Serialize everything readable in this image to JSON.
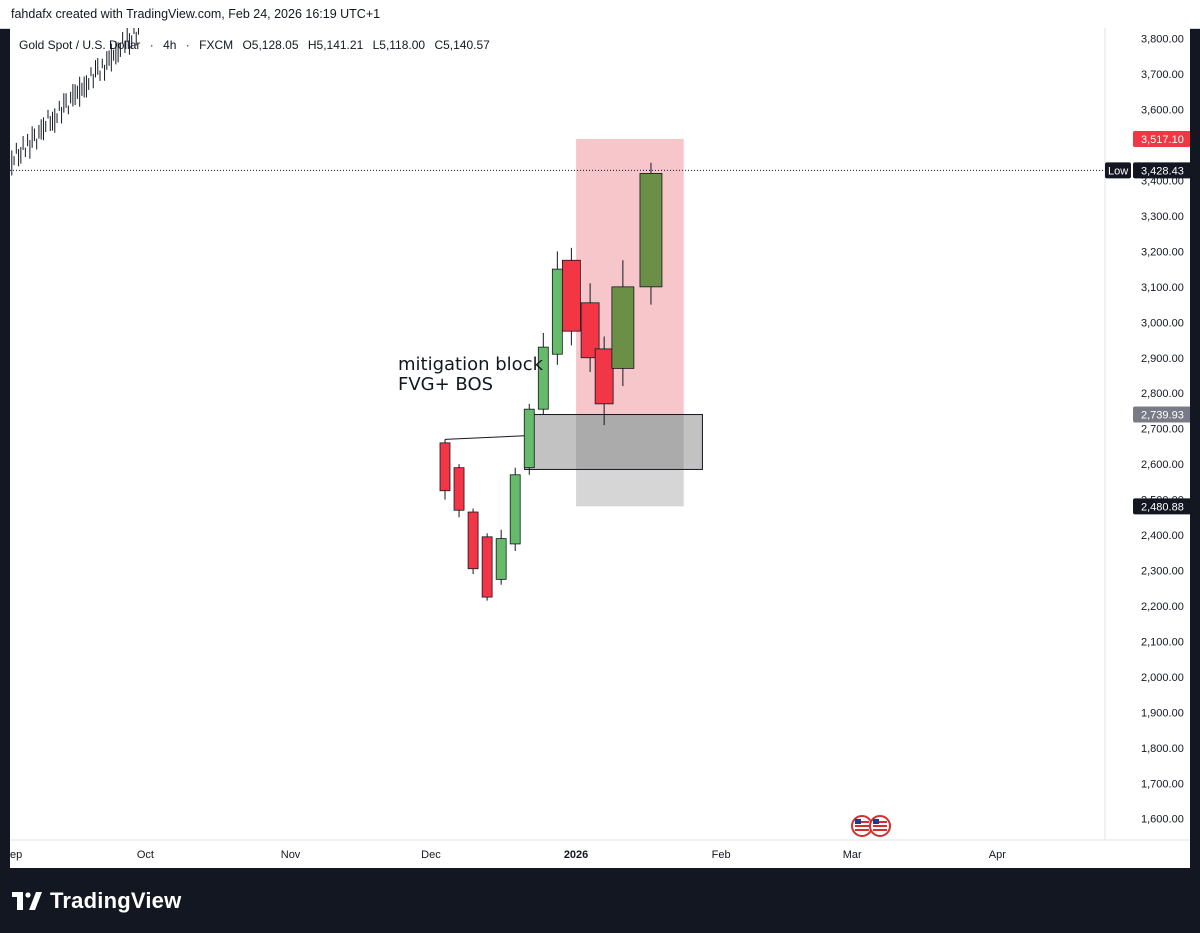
{
  "credit": "fahdafx created with TradingView.com, Feb 24, 2026 16:19 UTC+1",
  "legend": {
    "symbol": "Gold Spot / U.S. Dollar",
    "interval": "4h",
    "source": "FXCM",
    "open": "O5,128.05",
    "high": "H5,141.21",
    "low": "L5,118.00",
    "close": "C5,140.57"
  },
  "annotation": {
    "line1": "mitigation block",
    "line2": "FVG+ BOS"
  },
  "brand": {
    "name": "TradingView",
    "logo_icon": "tradingview-logo-icon"
  },
  "events_icon": "us-flag-icon",
  "colors": {
    "bull": "#66bb6a",
    "bull_dark": "#6b8f47",
    "bear": "#f23645",
    "zone_red": "#f7c6cb",
    "zone_gray": "#bdbdbd",
    "price_badge_red": "#f23645",
    "price_badge_dark": "#131722",
    "price_badge_gray": "#787b86"
  },
  "chart_data": {
    "type": "candlestick",
    "ylim": [
      1540,
      3830
    ],
    "y_ticks": [
      {
        "value": 1600,
        "label": "1,600.00"
      },
      {
        "value": 1700,
        "label": "1,700.00"
      },
      {
        "value": 1800,
        "label": "1,800.00"
      },
      {
        "value": 1900,
        "label": "1,900.00"
      },
      {
        "value": 2000,
        "label": "2,000.00"
      },
      {
        "value": 2100,
        "label": "2,100.00"
      },
      {
        "value": 2200,
        "label": "2,200.00"
      },
      {
        "value": 2300,
        "label": "2,300.00"
      },
      {
        "value": 2400,
        "label": "2,400.00"
      },
      {
        "value": 2500,
        "label": "2,500.00"
      },
      {
        "value": 2600,
        "label": "2,600.00"
      },
      {
        "value": 2700,
        "label": "2,700.00"
      },
      {
        "value": 2800,
        "label": "2,800.00"
      },
      {
        "value": 2900,
        "label": "2,900.00"
      },
      {
        "value": 3000,
        "label": "3,000.00"
      },
      {
        "value": 3100,
        "label": "3,100.00"
      },
      {
        "value": 3200,
        "label": "3,200.00"
      },
      {
        "value": 3300,
        "label": "3,300.00"
      },
      {
        "value": 3400,
        "label": "3,400.00"
      },
      {
        "value": 3600,
        "label": "3,600.00"
      },
      {
        "value": 3700,
        "label": "3,700.00"
      },
      {
        "value": 3800,
        "label": "3,800.00"
      }
    ],
    "x_ticks": [
      {
        "date": "2025-09-01",
        "label": "ep"
      },
      {
        "date": "2025-10-01",
        "label": "Oct"
      },
      {
        "date": "2025-11-01",
        "label": "Nov"
      },
      {
        "date": "2025-12-01",
        "label": "Dec"
      },
      {
        "date": "2026-01-01",
        "label": "2026",
        "bold": true
      },
      {
        "date": "2026-02-01",
        "label": "Feb"
      },
      {
        "date": "2026-03-01",
        "label": "Mar"
      },
      {
        "date": "2026-04-01",
        "label": "Apr"
      }
    ],
    "xlim": [
      "2025-09-01",
      "2026-04-24"
    ],
    "candles": [
      {
        "date": "2025-12-04",
        "open": 2660,
        "high": 2670,
        "low": 2500,
        "close": 2525
      },
      {
        "date": "2025-12-07",
        "open": 2590,
        "high": 2600,
        "low": 2450,
        "close": 2470
      },
      {
        "date": "2025-12-10",
        "open": 2465,
        "high": 2475,
        "low": 2290,
        "close": 2305
      },
      {
        "date": "2025-12-13",
        "open": 2395,
        "high": 2405,
        "low": 2215,
        "close": 2225
      },
      {
        "date": "2025-12-16",
        "open": 2275,
        "high": 2415,
        "low": 2260,
        "close": 2390
      },
      {
        "date": "2025-12-19",
        "open": 2375,
        "high": 2590,
        "low": 2355,
        "close": 2570
      },
      {
        "date": "2025-12-22",
        "open": 2590,
        "high": 2770,
        "low": 2570,
        "close": 2755
      },
      {
        "date": "2025-12-25",
        "open": 2755,
        "high": 2970,
        "low": 2740,
        "close": 2930
      },
      {
        "date": "2025-12-28",
        "open": 2910,
        "high": 3200,
        "low": 2880,
        "close": 3150
      },
      {
        "date": "2025-12-31",
        "open": 3175,
        "high": 3210,
        "low": 2935,
        "close": 2975
      },
      {
        "date": "2026-01-04",
        "open": 3055,
        "high": 3110,
        "low": 2860,
        "close": 2900
      },
      {
        "date": "2026-01-07",
        "open": 2925,
        "high": 2960,
        "low": 2710,
        "close": 2770
      },
      {
        "date": "2026-01-11",
        "open": 2870,
        "high": 3175,
        "low": 2820,
        "close": 3100
      },
      {
        "date": "2026-01-17",
        "open": 3100,
        "high": 3450,
        "low": 3050,
        "close": 3420
      }
    ],
    "small_history": {
      "from": "2025-09-01",
      "to": "2025-09-30",
      "start": 3430,
      "end": 3830
    },
    "levels": [
      {
        "value": 3517.1,
        "label": "3,517.10",
        "style": "red"
      },
      {
        "value": 3428.43,
        "label": "3,428.43",
        "tag": "Low",
        "style": "dark",
        "dotted_line": true
      },
      {
        "value": 2739.93,
        "label": "2,739.93",
        "style": "gray"
      },
      {
        "value": 2480.88,
        "label": "2,480.88",
        "style": "dark"
      }
    ],
    "zones": [
      {
        "name": "target-zone",
        "from": "2026-01-01",
        "to": "2026-01-24",
        "top": 3517.1,
        "bottom": 2739.93,
        "color": "red"
      },
      {
        "name": "stop-zone",
        "from": "2026-01-01",
        "to": "2026-01-24",
        "top": 2739.93,
        "bottom": 2480.88,
        "color": "gray"
      },
      {
        "name": "mitigation-block",
        "from": "2025-12-21",
        "to": "2026-01-28",
        "top": 2739.93,
        "bottom": 2585,
        "color": "gray-dark"
      }
    ],
    "ray": {
      "from_date": "2025-12-04",
      "to_date": "2025-12-21",
      "from_value": 2670,
      "to_value": 2680
    }
  }
}
